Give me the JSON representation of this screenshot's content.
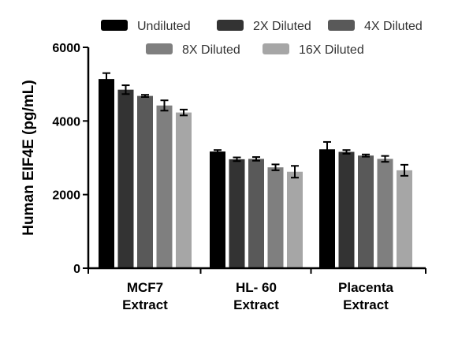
{
  "chart_data": {
    "type": "bar",
    "title": "",
    "xlabel": "",
    "ylabel": "Human EIF4E (pg/mL)",
    "ylim": [
      0,
      6000
    ],
    "yticks": [
      0,
      2000,
      4000,
      6000
    ],
    "grid": false,
    "legend_position": "top",
    "categories": [
      [
        "MCF7",
        "Extract"
      ],
      [
        "HL- 60",
        "Extract"
      ],
      [
        "Placenta",
        "Extract"
      ]
    ],
    "series": [
      {
        "name": "Undiluted",
        "color": "#000000",
        "values": [
          5140,
          3170,
          3230
        ],
        "errors": [
          160,
          40,
          200
        ]
      },
      {
        "name": "2X Diluted",
        "color": "#333333",
        "values": [
          4850,
          2960,
          3160
        ],
        "errors": [
          120,
          50,
          50
        ]
      },
      {
        "name": "4X Diluted",
        "color": "#595959",
        "values": [
          4680,
          2970,
          3060
        ],
        "errors": [
          30,
          50,
          30
        ]
      },
      {
        "name": "8X Diluted",
        "color": "#7f7f7f",
        "values": [
          4420,
          2740,
          2970
        ],
        "errors": [
          140,
          80,
          80
        ]
      },
      {
        "name": "16X Diluted",
        "color": "#a6a6a6",
        "values": [
          4230,
          2620,
          2660
        ],
        "errors": [
          80,
          160,
          150
        ]
      }
    ]
  }
}
